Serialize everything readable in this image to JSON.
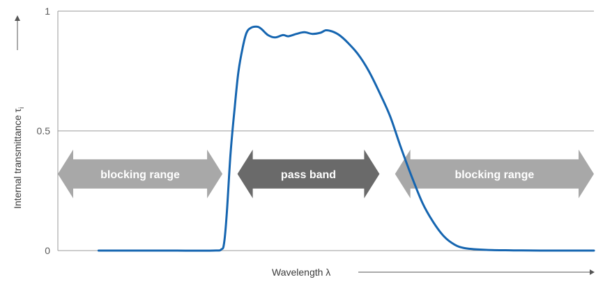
{
  "chart_data": {
    "type": "line",
    "xlabel": "Wavelength λ",
    "ylabel": "Internal transmittance τ",
    "ylabel_subscript": "i",
    "ylim": [
      0,
      1
    ],
    "yticks": [
      {
        "value": 0,
        "label": "0"
      },
      {
        "value": 0.5,
        "label": "0.5"
      },
      {
        "value": 1,
        "label": "1"
      }
    ],
    "grid": "horizontal at 0.5 and 1",
    "line_color": "#1565b0",
    "series": [
      {
        "points": [
          [
            0.076,
            0.0
          ],
          [
            0.2,
            0.0
          ],
          [
            0.29,
            0.0
          ],
          [
            0.305,
            0.005
          ],
          [
            0.31,
            0.03
          ],
          [
            0.315,
            0.15
          ],
          [
            0.322,
            0.4
          ],
          [
            0.33,
            0.6
          ],
          [
            0.337,
            0.75
          ],
          [
            0.345,
            0.85
          ],
          [
            0.352,
            0.91
          ],
          [
            0.36,
            0.93
          ],
          [
            0.372,
            0.935
          ],
          [
            0.38,
            0.925
          ],
          [
            0.392,
            0.9
          ],
          [
            0.405,
            0.89
          ],
          [
            0.42,
            0.9
          ],
          [
            0.43,
            0.895
          ],
          [
            0.445,
            0.905
          ],
          [
            0.46,
            0.912
          ],
          [
            0.475,
            0.905
          ],
          [
            0.49,
            0.91
          ],
          [
            0.5,
            0.92
          ],
          [
            0.512,
            0.915
          ],
          [
            0.525,
            0.9
          ],
          [
            0.54,
            0.87
          ],
          [
            0.56,
            0.82
          ],
          [
            0.58,
            0.75
          ],
          [
            0.6,
            0.66
          ],
          [
            0.62,
            0.56
          ],
          [
            0.64,
            0.43
          ],
          [
            0.66,
            0.31
          ],
          [
            0.68,
            0.2
          ],
          [
            0.7,
            0.12
          ],
          [
            0.72,
            0.06
          ],
          [
            0.74,
            0.025
          ],
          [
            0.76,
            0.01
          ],
          [
            0.8,
            0.003
          ],
          [
            0.85,
            0.001
          ],
          [
            0.9,
            0.0
          ],
          [
            1.0,
            0.0
          ]
        ]
      }
    ],
    "annotations": [
      {
        "label": "blocking range",
        "x_start": 0.0,
        "x_end": 0.307,
        "y": 0.32,
        "color": "#a8a8a8"
      },
      {
        "label": "pass band",
        "x_start": 0.335,
        "x_end": 0.6,
        "y": 0.32,
        "color": "#6a6a6a"
      },
      {
        "label": "blocking range",
        "x_start": 0.629,
        "x_end": 1.0,
        "y": 0.32,
        "color": "#a8a8a8"
      }
    ]
  }
}
